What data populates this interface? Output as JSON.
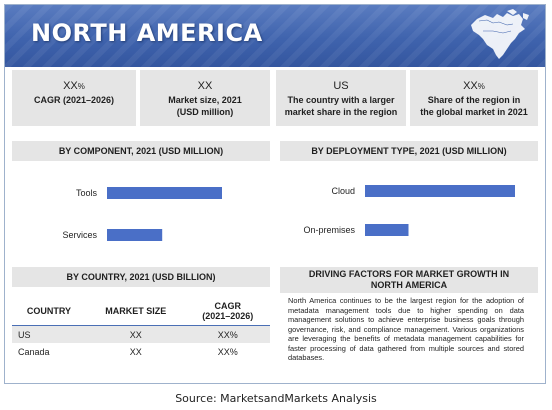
{
  "header": {
    "title": "NORTH AMERICA"
  },
  "kpis": [
    {
      "value": "XX",
      "unit": "%",
      "label": "CAGR (2021–2026)"
    },
    {
      "value": "XX",
      "unit": "",
      "label_line1": "Market size, 2021",
      "label_line2": "(USD million)"
    },
    {
      "value": "US",
      "unit": "",
      "label_line1": "The country with a larger",
      "label_line2": "market share in the region"
    },
    {
      "value": "XX",
      "unit": "%",
      "label_line1": "Share of the region in",
      "label_line2": "the global market in 2021"
    }
  ],
  "sections": {
    "component": "BY COMPONENT, 2021 (USD MILLION)",
    "deployment": "BY DEPLOYMENT TYPE, 2021 (USD MILLION)",
    "country": "BY COUNTRY, 2021 (USD BILLION)",
    "driving_line1": "DRIVING FACTORS FOR MARKET GROWTH IN",
    "driving_line2": "NORTH AMERICA"
  },
  "chart_data": [
    {
      "type": "bar",
      "orientation": "horizontal",
      "title": "BY COMPONENT, 2021 (USD MILLION)",
      "categories": [
        "Tools",
        "Services"
      ],
      "values": [
        100,
        48
      ],
      "color": "#4a6fc7"
    },
    {
      "type": "bar",
      "orientation": "horizontal",
      "title": "BY DEPLOYMENT TYPE, 2021 (USD MILLION)",
      "categories": [
        "Cloud",
        "On-premises"
      ],
      "values": [
        100,
        29
      ],
      "color": "#4a6fc7"
    }
  ],
  "country_table": {
    "columns": [
      "COUNTRY",
      "MARKET SIZE",
      "CAGR",
      "(2021–2026)"
    ],
    "rows": [
      {
        "country": "US",
        "market_size": "XX",
        "cagr": "XX%"
      },
      {
        "country": "Canada",
        "market_size": "XX",
        "cagr": "XX%"
      }
    ]
  },
  "driving_text": "North America continues to be the largest region for the adoption of metadata management tools due to higher spending on data management solutions to achieve enterprise business goals through governance, risk, and compliance management. Various organizations are leveraging the benefits of metadata management capabilities for faster processing of data gathered from multiple sources and stored databases.",
  "source": "Source: MarketsandMarkets Analysis",
  "colors": {
    "banner": "#3f63ad",
    "bar": "#4a6fc7",
    "panel": "#e5e5e5"
  },
  "icons": {
    "map": "north-america-map-icon"
  }
}
